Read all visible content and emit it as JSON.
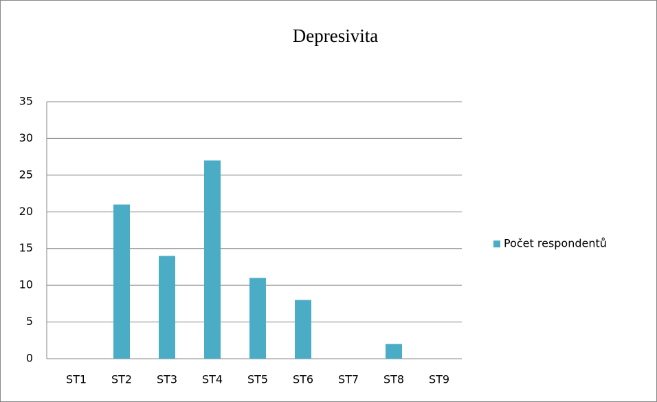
{
  "chart_data": {
    "type": "bar",
    "title": "Depresivita",
    "categories": [
      "ST1",
      "ST2",
      "ST3",
      "ST4",
      "ST5",
      "ST6",
      "ST7",
      "ST8",
      "ST9"
    ],
    "series": [
      {
        "name": "Počet respondentů",
        "color": "#4bacc6",
        "values": [
          0,
          21,
          14,
          27,
          11,
          8,
          0,
          2,
          0
        ]
      }
    ],
    "ylim": [
      0,
      35
    ],
    "yticks": [
      0,
      5,
      10,
      15,
      20,
      25,
      30,
      35
    ],
    "grid": true,
    "legend": "right"
  }
}
